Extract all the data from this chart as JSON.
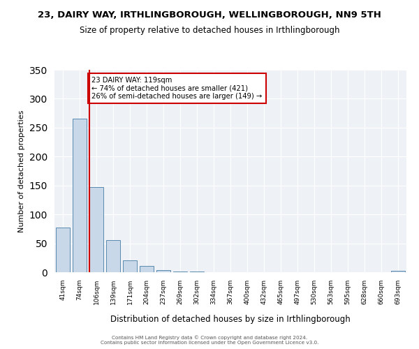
{
  "title": "23, DAIRY WAY, IRTHLINGBOROUGH, WELLINGBOROUGH, NN9 5TH",
  "subtitle": "Size of property relative to detached houses in Irthlingborough",
  "xlabel": "Distribution of detached houses by size in Irthlingborough",
  "ylabel": "Number of detached properties",
  "bar_labels": [
    "41sqm",
    "74sqm",
    "106sqm",
    "139sqm",
    "171sqm",
    "204sqm",
    "237sqm",
    "269sqm",
    "302sqm",
    "334sqm",
    "367sqm",
    "400sqm",
    "432sqm",
    "465sqm",
    "497sqm",
    "530sqm",
    "563sqm",
    "595sqm",
    "628sqm",
    "660sqm",
    "693sqm"
  ],
  "bar_values": [
    77,
    265,
    147,
    56,
    20,
    11,
    4,
    1,
    1,
    0,
    0,
    0,
    0,
    0,
    0,
    0,
    0,
    0,
    0,
    0,
    2
  ],
  "bar_color": "#c8d8e8",
  "bar_edge_color": "#5a8ab0",
  "vline_color": "#cc0000",
  "annotation_text": "23 DAIRY WAY: 119sqm\n← 74% of detached houses are smaller (421)\n26% of semi-detached houses are larger (149) →",
  "annotation_box_color": "#ffffff",
  "annotation_box_edge_color": "#cc0000",
  "ylim": [
    0,
    350
  ],
  "yticks": [
    0,
    50,
    100,
    150,
    200,
    250,
    300,
    350
  ],
  "background_color": "#eef2f7",
  "footer_line1": "Contains HM Land Registry data © Crown copyright and database right 2024.",
  "footer_line2": "Contains public sector information licensed under the Open Government Licence v3.0."
}
